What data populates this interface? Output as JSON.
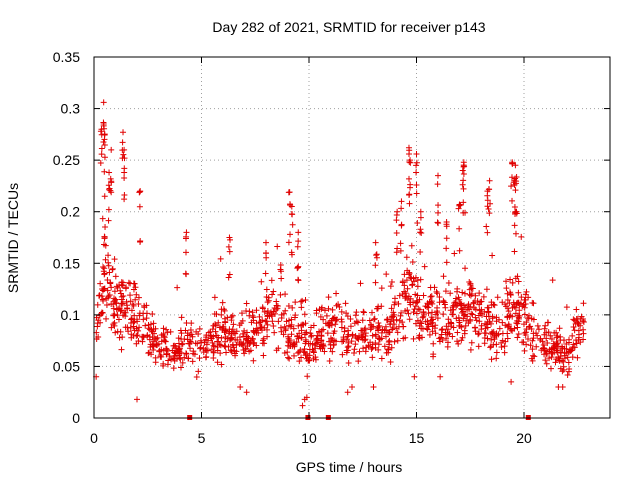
{
  "chart_data": {
    "type": "scatter",
    "title": "Day 282 of 2021, SRMTID for receiver p143",
    "xlabel": "GPS time / hours",
    "ylabel": "SRMTID / TECUs",
    "xlim": [
      0,
      24
    ],
    "ylim": [
      0,
      0.35
    ],
    "x_ticks": [
      0,
      5,
      10,
      15,
      20
    ],
    "x_tick_labels": [
      "0",
      "5",
      "10",
      "15",
      "20"
    ],
    "y_ticks": [
      0,
      0.05,
      0.1,
      0.15,
      0.2,
      0.25,
      0.3,
      0.35
    ],
    "y_tick_labels": [
      "0",
      "0.05",
      "0.1",
      "0.15",
      "0.2",
      "0.25",
      "0.3",
      "0.35"
    ],
    "grid": true,
    "marker": "plus",
    "color": "#e00000",
    "series": [
      {
        "name": "SRMTID",
        "envelope": {
          "x": [
            0,
            0.3,
            0.5,
            0.8,
            1.3,
            1.6,
            2.0,
            2.3,
            2.6,
            3.0,
            3.5,
            4.0,
            4.5,
            5.0,
            5.5,
            6.0,
            6.5,
            7.0,
            7.5,
            8.0,
            8.5,
            9.0,
            9.5,
            10.0,
            10.5,
            11.0,
            11.5,
            12.0,
            12.5,
            13.0,
            13.5,
            14.0,
            14.5,
            14.8,
            15.2,
            15.6,
            16.0,
            16.5,
            17.0,
            17.5,
            18.0,
            18.5,
            19.0,
            19.5,
            19.8,
            20.2,
            20.5,
            21.0,
            21.5,
            22.0,
            22.5,
            22.8
          ],
          "level": [
            0.075,
            0.105,
            0.125,
            0.115,
            0.11,
            0.105,
            0.095,
            0.09,
            0.08,
            0.07,
            0.065,
            0.065,
            0.07,
            0.07,
            0.075,
            0.085,
            0.08,
            0.075,
            0.08,
            0.095,
            0.1,
            0.085,
            0.08,
            0.07,
            0.08,
            0.085,
            0.085,
            0.08,
            0.08,
            0.08,
            0.085,
            0.09,
            0.12,
            0.125,
            0.1,
            0.09,
            0.095,
            0.1,
            0.1,
            0.105,
            0.095,
            0.09,
            0.085,
            0.11,
            0.105,
            0.09,
            0.08,
            0.075,
            0.065,
            0.06,
            0.08,
            0.1
          ],
          "spread": [
            0.025,
            0.035,
            0.045,
            0.04,
            0.04,
            0.035,
            0.035,
            0.03,
            0.025,
            0.02,
            0.02,
            0.02,
            0.025,
            0.025,
            0.025,
            0.03,
            0.03,
            0.025,
            0.03,
            0.035,
            0.035,
            0.035,
            0.035,
            0.03,
            0.03,
            0.03,
            0.03,
            0.03,
            0.03,
            0.03,
            0.03,
            0.035,
            0.045,
            0.045,
            0.035,
            0.035,
            0.035,
            0.04,
            0.04,
            0.04,
            0.035,
            0.035,
            0.035,
            0.04,
            0.04,
            0.03,
            0.03,
            0.025,
            0.02,
            0.02,
            0.025,
            0.03
          ]
        },
        "peaks": [
          {
            "x": 0.45,
            "y": 0.306
          },
          {
            "x": 0.45,
            "y": 0.285
          },
          {
            "x": 0.35,
            "y": 0.28
          },
          {
            "x": 1.35,
            "y": 0.277
          },
          {
            "x": 1.4,
            "y": 0.26
          },
          {
            "x": 0.8,
            "y": 0.26
          },
          {
            "x": 0.7,
            "y": 0.238
          },
          {
            "x": 2.15,
            "y": 0.22
          },
          {
            "x": 0.5,
            "y": 0.215
          },
          {
            "x": 14.65,
            "y": 0.262
          },
          {
            "x": 15.0,
            "y": 0.256
          },
          {
            "x": 14.7,
            "y": 0.25
          },
          {
            "x": 14.3,
            "y": 0.21
          },
          {
            "x": 15.2,
            "y": 0.2
          },
          {
            "x": 17.2,
            "y": 0.248
          },
          {
            "x": 17.15,
            "y": 0.24
          },
          {
            "x": 16.0,
            "y": 0.235
          },
          {
            "x": 16.4,
            "y": 0.19
          },
          {
            "x": 19.45,
            "y": 0.248
          },
          {
            "x": 19.6,
            "y": 0.245
          },
          {
            "x": 19.55,
            "y": 0.23
          },
          {
            "x": 19.6,
            "y": 0.2
          },
          {
            "x": 18.4,
            "y": 0.23
          },
          {
            "x": 18.3,
            "y": 0.22
          },
          {
            "x": 9.1,
            "y": 0.219
          },
          {
            "x": 9.2,
            "y": 0.205
          },
          {
            "x": 9.5,
            "y": 0.18
          },
          {
            "x": 17.0,
            "y": 0.207
          },
          {
            "x": 14.1,
            "y": 0.2
          },
          {
            "x": 8.0,
            "y": 0.17
          },
          {
            "x": 6.3,
            "y": 0.175
          },
          {
            "x": 4.3,
            "y": 0.18
          },
          {
            "x": 13.1,
            "y": 0.17
          }
        ],
        "lows": [
          {
            "x": 9.7,
            "y": 0.012
          },
          {
            "x": 9.8,
            "y": 0.018
          },
          {
            "x": 9.9,
            "y": 0.02
          },
          {
            "x": 2.0,
            "y": 0.018
          },
          {
            "x": 0.1,
            "y": 0.04
          },
          {
            "x": 21.6,
            "y": 0.03
          },
          {
            "x": 21.8,
            "y": 0.03
          },
          {
            "x": 19.4,
            "y": 0.035
          },
          {
            "x": 14.9,
            "y": 0.04
          },
          {
            "x": 11.8,
            "y": 0.025
          },
          {
            "x": 12.0,
            "y": 0.03
          },
          {
            "x": 7.1,
            "y": 0.025
          },
          {
            "x": 6.8,
            "y": 0.03
          },
          {
            "x": 16.1,
            "y": 0.04
          },
          {
            "x": 13.0,
            "y": 0.03
          }
        ]
      }
    ],
    "zero_markers_x": [
      4.45,
      9.95,
      10.9,
      20.2
    ]
  }
}
